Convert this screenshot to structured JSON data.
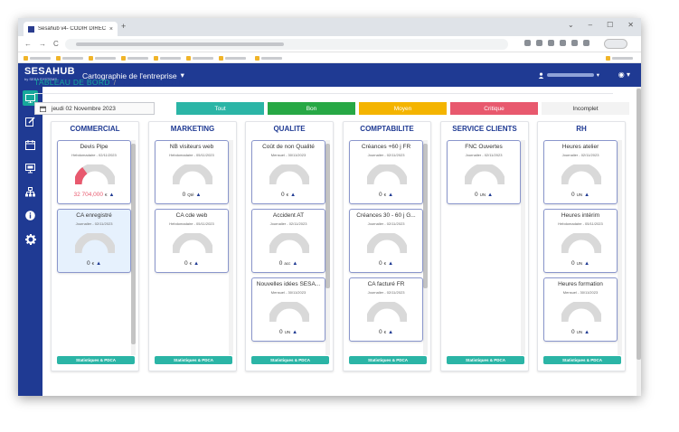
{
  "browser": {
    "tab_title": "Sesahub v4- CODIR DIRECTION",
    "tab_close": "×",
    "new_tab": "+",
    "controls": [
      "⌄",
      "–",
      "☐",
      "✕"
    ],
    "nav": [
      "←",
      "→",
      "C"
    ]
  },
  "app": {
    "logo_main": "SESAHUB",
    "logo_sub": "by SESA SYSTEMS",
    "title": "Cartographie de l'entreprise",
    "title_caret": "▾",
    "user_caret": "▾",
    "globe": "◉ ▾"
  },
  "breadcrumb": {
    "root": "TABLEAU DE BORD",
    "separator": "/",
    "current": "CODIR DIRECTION"
  },
  "date_label": "jeudi 02 Novembre 2023",
  "filters": [
    {
      "label": "Tout",
      "color": "#2bb5a6"
    },
    {
      "label": "Bon",
      "color": "#27a845"
    },
    {
      "label": "Moyen",
      "color": "#f4b400"
    },
    {
      "label": "Critique",
      "color": "#e8596e"
    },
    {
      "label": "Incomplet",
      "color": "#f3f3f3"
    }
  ],
  "columns": [
    {
      "title": "COMMERCIAL",
      "button": "Statistiques & PDCA",
      "cards": [
        {
          "title": "Devis Pipe",
          "sub": "Hebdomadaire - 02/11/2023",
          "value": "32 704,000",
          "unit": "€",
          "fill_fraction": 0.3,
          "color": "#e8596e"
        },
        {
          "title": "CA enregistré",
          "sub": "Journalier - 02/11/2023",
          "value": "0",
          "unit": "€",
          "fill_fraction": 0,
          "color": "#d9d9d9"
        }
      ]
    },
    {
      "title": "MARKETING",
      "button": "Statistiques & PDCA",
      "cards": [
        {
          "title": "NB visiteurs web",
          "sub": "Hebdomadaire - 05/11/2023",
          "value": "0",
          "unit": "Qté",
          "fill_fraction": 0,
          "color": "#d9d9d9"
        },
        {
          "title": "CA cde web",
          "sub": "Hebdomadaire - 05/11/2023",
          "value": "0",
          "unit": "€",
          "fill_fraction": 0,
          "color": "#d9d9d9"
        }
      ]
    },
    {
      "title": "QUALITE",
      "button": "Statistiques & PDCA",
      "cards": [
        {
          "title": "Coût de non Qualité",
          "sub": "Mensuel - 30/11/2023",
          "value": "0",
          "unit": "€",
          "fill_fraction": 0,
          "color": "#d9d9d9"
        },
        {
          "title": "Accident AT",
          "sub": "Journalier - 02/11/2023",
          "value": "0",
          "unit": "acc",
          "fill_fraction": 0,
          "color": "#d9d9d9"
        },
        {
          "title": "Nouvelles idées SESA...",
          "sub": "Mensuel - 30/11/2023",
          "value": "0",
          "unit": "UN",
          "fill_fraction": 0,
          "color": "#d9d9d9"
        }
      ]
    },
    {
      "title": "COMPTABILITE",
      "button": "Statistiques & PDCA",
      "cards": [
        {
          "title": "Créances +60 j FR",
          "sub": "Journalier - 02/11/2023",
          "value": "0",
          "unit": "€",
          "fill_fraction": 0,
          "color": "#d9d9d9"
        },
        {
          "title": "Créances 30 - 60 j G...",
          "sub": "Journalier - 02/11/2023",
          "value": "0",
          "unit": "€",
          "fill_fraction": 0,
          "color": "#d9d9d9"
        },
        {
          "title": "CA facturé FR",
          "sub": "Journalier - 02/11/2023",
          "value": "0",
          "unit": "€",
          "fill_fraction": 0,
          "color": "#d9d9d9"
        }
      ]
    },
    {
      "title": "SERVICE CLIENTS",
      "button": "Statistiques & PDCA",
      "cards": [
        {
          "title": "FNC Ouvertes",
          "sub": "Journalier - 02/11/2023",
          "value": "0",
          "unit": "UN",
          "fill_fraction": 0,
          "color": "#d9d9d9"
        }
      ]
    },
    {
      "title": "RH",
      "button": "Statistiques & PDCA",
      "cards": [
        {
          "title": "Heures atelier",
          "sub": "Journalier - 02/11/2023",
          "value": "0",
          "unit": "UN",
          "fill_fraction": 0,
          "color": "#d9d9d9"
        },
        {
          "title": "Heures intérim",
          "sub": "Hebdomadaire - 05/11/2023",
          "value": "0",
          "unit": "UN",
          "fill_fraction": 0,
          "color": "#d9d9d9"
        },
        {
          "title": "Heures formation",
          "sub": "Mensuel - 30/11/2023",
          "value": "0",
          "unit": "UN",
          "fill_fraction": 0,
          "color": "#d9d9d9"
        }
      ]
    }
  ]
}
